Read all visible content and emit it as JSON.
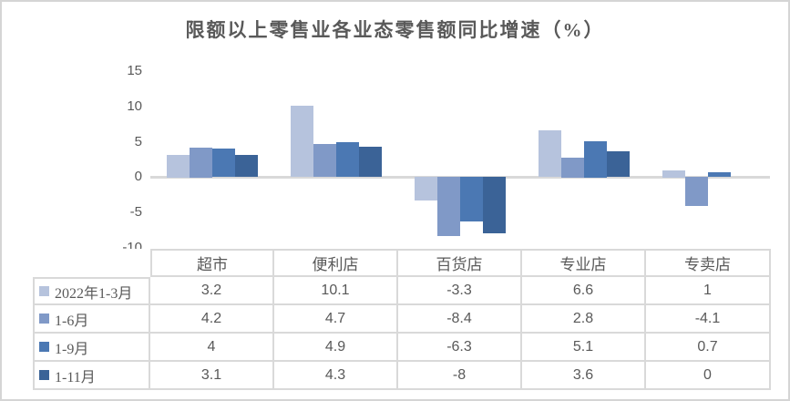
{
  "chart_data": {
    "type": "bar",
    "title": "限额以上零售业各业态零售额同比增速（%）",
    "categories": [
      "超市",
      "便利店",
      "百货店",
      "专业店",
      "专卖店"
    ],
    "series": [
      {
        "name": "2022年1-3月",
        "color": "#b6c3dd",
        "values": [
          3.2,
          10.1,
          -3.3,
          6.6,
          1
        ]
      },
      {
        "name": "1-6月",
        "color": "#8099c7",
        "values": [
          4.2,
          4.7,
          -8.4,
          2.8,
          -4.1
        ]
      },
      {
        "name": "1-9月",
        "color": "#4b78b3",
        "values": [
          4,
          4.9,
          -6.3,
          5.1,
          0.7
        ]
      },
      {
        "name": "1-11月",
        "color": "#3b6397",
        "values": [
          3.1,
          4.3,
          -8,
          3.6,
          0
        ]
      }
    ],
    "y_ticks": [
      15,
      10,
      5,
      0,
      -5,
      -10
    ],
    "ylim": [
      -10,
      15
    ],
    "grid": false,
    "legend_position": "data-table-left-column",
    "axis_line_color": "#d9d9d9",
    "label_color": "#595959"
  }
}
